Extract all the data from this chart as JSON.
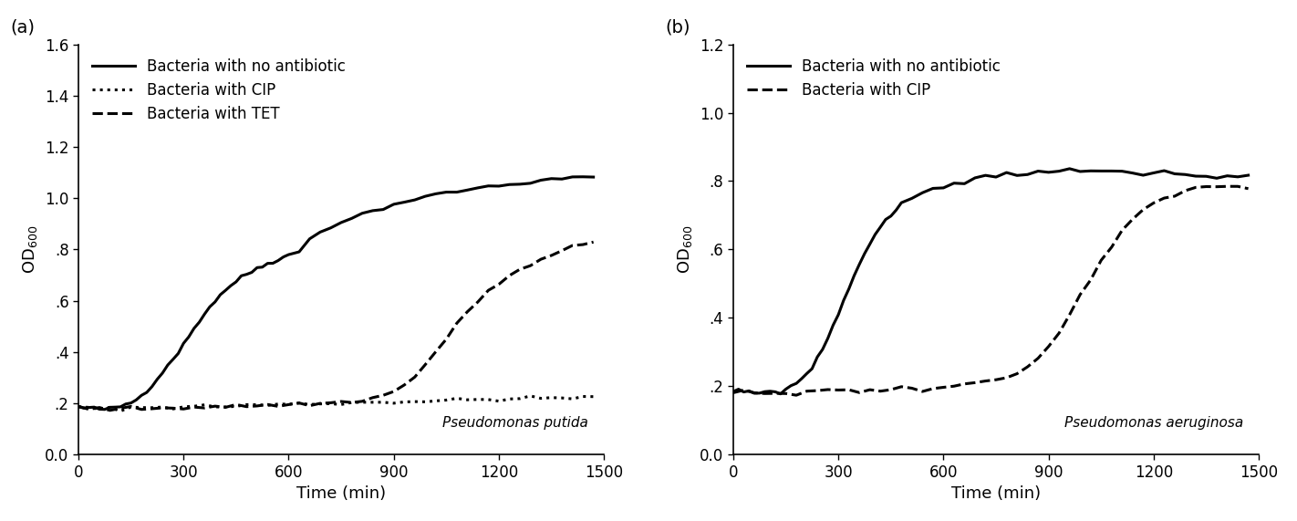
{
  "panel_a": {
    "label": "(a)",
    "species": "Pseudomonas putida",
    "ylabel": "OD$_{600}$",
    "xlabel": "Time (min)",
    "xlim": [
      0,
      1500
    ],
    "ylim": [
      0.0,
      1.6
    ],
    "yticks": [
      0.0,
      0.2,
      0.4,
      0.6,
      0.8,
      1.0,
      1.2,
      1.4,
      1.6
    ],
    "ytick_labels": [
      "0.0",
      ".2",
      ".4",
      ".6",
      ".8",
      "1.0",
      "1.2",
      "1.4",
      "1.6"
    ],
    "xticks": [
      0,
      300,
      600,
      900,
      1200,
      1500
    ],
    "legend": [
      {
        "label": "Bacteria with no antibiotic",
        "linestyle": "solid",
        "linewidth": 2.2
      },
      {
        "label": "Bacteria with CIP",
        "linestyle": "dotted",
        "linewidth": 2.2
      },
      {
        "label": "Bacteria with TET",
        "linestyle": "dashed",
        "linewidth": 2.2
      }
    ],
    "curves": {
      "no_antibiotic": {
        "x": [
          0,
          15,
          30,
          45,
          60,
          75,
          90,
          105,
          120,
          135,
          150,
          165,
          180,
          195,
          210,
          225,
          240,
          255,
          270,
          285,
          300,
          315,
          330,
          345,
          360,
          375,
          390,
          405,
          420,
          435,
          450,
          465,
          480,
          495,
          510,
          525,
          540,
          555,
          570,
          585,
          600,
          630,
          660,
          690,
          720,
          750,
          780,
          810,
          840,
          870,
          900,
          930,
          960,
          990,
          1020,
          1050,
          1080,
          1110,
          1140,
          1170,
          1200,
          1230,
          1260,
          1290,
          1320,
          1350,
          1380,
          1410,
          1440,
          1470
        ],
        "y": [
          0.185,
          0.182,
          0.181,
          0.179,
          0.178,
          0.177,
          0.178,
          0.182,
          0.188,
          0.195,
          0.203,
          0.215,
          0.23,
          0.25,
          0.272,
          0.296,
          0.322,
          0.348,
          0.375,
          0.4,
          0.428,
          0.46,
          0.492,
          0.522,
          0.55,
          0.576,
          0.6,
          0.622,
          0.643,
          0.66,
          0.676,
          0.69,
          0.703,
          0.715,
          0.726,
          0.736,
          0.745,
          0.754,
          0.762,
          0.77,
          0.777,
          0.79,
          0.842,
          0.869,
          0.89,
          0.908,
          0.923,
          0.937,
          0.95,
          0.963,
          0.975,
          0.986,
          0.996,
          1.005,
          1.013,
          1.02,
          1.027,
          1.033,
          1.039,
          1.044,
          1.049,
          1.054,
          1.059,
          1.063,
          1.067,
          1.071,
          1.075,
          1.079,
          1.082,
          1.085
        ]
      },
      "cip": {
        "x": [
          0,
          30,
          60,
          90,
          120,
          150,
          180,
          210,
          240,
          270,
          300,
          330,
          360,
          390,
          420,
          450,
          480,
          510,
          540,
          570,
          600,
          630,
          660,
          690,
          720,
          750,
          780,
          810,
          840,
          870,
          900,
          930,
          960,
          990,
          1020,
          1050,
          1080,
          1110,
          1140,
          1170,
          1200,
          1230,
          1260,
          1290,
          1320,
          1350,
          1380,
          1410,
          1440,
          1470
        ],
        "y": [
          0.185,
          0.178,
          0.177,
          0.178,
          0.18,
          0.182,
          0.183,
          0.184,
          0.185,
          0.186,
          0.187,
          0.187,
          0.188,
          0.188,
          0.189,
          0.19,
          0.191,
          0.193,
          0.194,
          0.195,
          0.196,
          0.197,
          0.198,
          0.199,
          0.2,
          0.201,
          0.202,
          0.203,
          0.204,
          0.205,
          0.206,
          0.207,
          0.208,
          0.209,
          0.21,
          0.211,
          0.212,
          0.213,
          0.214,
          0.215,
          0.216,
          0.217,
          0.218,
          0.219,
          0.22,
          0.221,
          0.221,
          0.222,
          0.222,
          0.223
        ]
      },
      "tet": {
        "x": [
          0,
          30,
          60,
          90,
          120,
          150,
          180,
          210,
          240,
          270,
          300,
          330,
          360,
          390,
          420,
          450,
          480,
          510,
          540,
          570,
          600,
          630,
          660,
          690,
          720,
          750,
          780,
          810,
          840,
          870,
          900,
          930,
          960,
          990,
          1020,
          1050,
          1080,
          1110,
          1140,
          1170,
          1200,
          1230,
          1260,
          1290,
          1320,
          1350,
          1380,
          1410,
          1440,
          1470
        ],
        "y": [
          0.185,
          0.18,
          0.178,
          0.178,
          0.178,
          0.179,
          0.18,
          0.181,
          0.182,
          0.183,
          0.184,
          0.185,
          0.186,
          0.187,
          0.188,
          0.189,
          0.19,
          0.191,
          0.192,
          0.193,
          0.194,
          0.196,
          0.197,
          0.199,
          0.201,
          0.204,
          0.208,
          0.213,
          0.22,
          0.23,
          0.245,
          0.27,
          0.305,
          0.35,
          0.4,
          0.453,
          0.505,
          0.555,
          0.6,
          0.638,
          0.668,
          0.695,
          0.718,
          0.74,
          0.758,
          0.775,
          0.792,
          0.808,
          0.82,
          0.832
        ]
      }
    }
  },
  "panel_b": {
    "label": "(b)",
    "species": "Pseudomonas aeruginosa",
    "ylabel": "OD$_{600}$",
    "xlabel": "Time (min)",
    "xlim": [
      0,
      1500
    ],
    "ylim": [
      0.0,
      1.2
    ],
    "yticks": [
      0.0,
      0.2,
      0.4,
      0.6,
      0.8,
      1.0,
      1.2
    ],
    "ytick_labels": [
      "0.0",
      ".2",
      ".4",
      ".6",
      ".8",
      "1.0",
      "1.2"
    ],
    "xticks": [
      0,
      300,
      600,
      900,
      1200,
      1500
    ],
    "legend": [
      {
        "label": "Bacteria with no antibiotic",
        "linestyle": "solid",
        "linewidth": 2.2
      },
      {
        "label": "Bacteria with CIP",
        "linestyle": "dashed",
        "linewidth": 2.2
      }
    ],
    "curves": {
      "no_antibiotic": {
        "x": [
          0,
          15,
          30,
          45,
          60,
          75,
          90,
          105,
          120,
          135,
          150,
          165,
          180,
          195,
          210,
          225,
          240,
          255,
          270,
          285,
          300,
          315,
          330,
          345,
          360,
          375,
          390,
          405,
          420,
          435,
          450,
          465,
          480,
          510,
          540,
          570,
          600,
          630,
          660,
          690,
          720,
          750,
          780,
          810,
          840,
          870,
          900,
          930,
          960,
          990,
          1020,
          1050,
          1080,
          1110,
          1140,
          1170,
          1200,
          1230,
          1260,
          1290,
          1320,
          1350,
          1380,
          1410,
          1440,
          1470
        ],
        "y": [
          0.185,
          0.183,
          0.182,
          0.181,
          0.18,
          0.18,
          0.181,
          0.182,
          0.184,
          0.187,
          0.192,
          0.199,
          0.208,
          0.22,
          0.236,
          0.257,
          0.282,
          0.31,
          0.342,
          0.376,
          0.412,
          0.45,
          0.488,
          0.524,
          0.558,
          0.59,
          0.619,
          0.644,
          0.665,
          0.684,
          0.7,
          0.715,
          0.728,
          0.748,
          0.764,
          0.777,
          0.787,
          0.795,
          0.801,
          0.806,
          0.81,
          0.814,
          0.818,
          0.821,
          0.824,
          0.827,
          0.829,
          0.831,
          0.832,
          0.832,
          0.831,
          0.83,
          0.828,
          0.826,
          0.824,
          0.822,
          0.82,
          0.819,
          0.818,
          0.817,
          0.816,
          0.815,
          0.814,
          0.813,
          0.813,
          0.812
        ]
      },
      "cip": {
        "x": [
          0,
          30,
          60,
          90,
          120,
          150,
          180,
          210,
          240,
          270,
          300,
          330,
          360,
          390,
          420,
          450,
          480,
          510,
          540,
          570,
          600,
          630,
          660,
          690,
          720,
          750,
          780,
          810,
          840,
          870,
          900,
          930,
          960,
          990,
          1020,
          1050,
          1080,
          1110,
          1140,
          1170,
          1200,
          1230,
          1260,
          1290,
          1320,
          1350,
          1380,
          1410,
          1440,
          1470
        ],
        "y": [
          0.185,
          0.183,
          0.182,
          0.181,
          0.181,
          0.181,
          0.182,
          0.183,
          0.184,
          0.185,
          0.186,
          0.187,
          0.188,
          0.189,
          0.19,
          0.191,
          0.193,
          0.194,
          0.195,
          0.197,
          0.199,
          0.201,
          0.203,
          0.207,
          0.212,
          0.218,
          0.226,
          0.238,
          0.255,
          0.278,
          0.31,
          0.355,
          0.408,
          0.462,
          0.515,
          0.565,
          0.61,
          0.65,
          0.683,
          0.71,
          0.73,
          0.747,
          0.76,
          0.77,
          0.778,
          0.782,
          0.784,
          0.784,
          0.783,
          0.782
        ]
      }
    }
  },
  "figure_bg": "#ffffff",
  "line_color": "#000000",
  "font_size_label": 13,
  "font_size_tick": 12,
  "font_size_legend": 12,
  "font_size_panel_label": 14,
  "font_size_species": 11
}
